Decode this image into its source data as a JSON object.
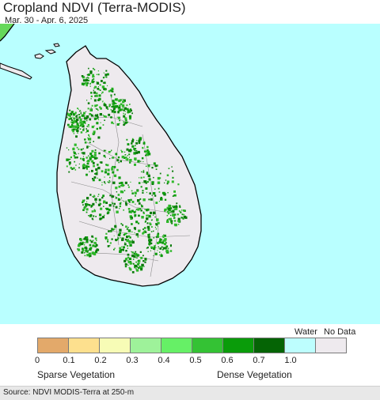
{
  "header": {
    "title": "Cropland NDVI (Terra-MODIS)",
    "date_range": "Mar. 30 - Apr. 6, 2025"
  },
  "map": {
    "colors": {
      "sea": "#b9ffff",
      "land": "#eeeaee",
      "coast": "#000000",
      "mainland": "#66d85a",
      "veg_light": "#2fb82a",
      "veg_mid": "#0e9a0e",
      "veg_dark": "#087a08",
      "boundary": "#8a8a8a"
    }
  },
  "legend": {
    "water_label": "Water",
    "nodata_label": "No Data",
    "swatch_colors": [
      "#e3a96a",
      "#fde08e",
      "#f7fcb6",
      "#9ef29a",
      "#66f066",
      "#34c234",
      "#0a9c0a",
      "#056405",
      "#bdfefe",
      "#eeeaee"
    ],
    "ticks": [
      "0",
      "0.1",
      "0.2",
      "0.3",
      "0.4",
      "0.5",
      "0.6",
      "0.7",
      "1.0"
    ],
    "left_caption": "Sparse Vegetation",
    "right_caption": "Dense Vegetation"
  },
  "footer": {
    "source": "Source: NDVI MODIS-Terra at 250-m"
  }
}
